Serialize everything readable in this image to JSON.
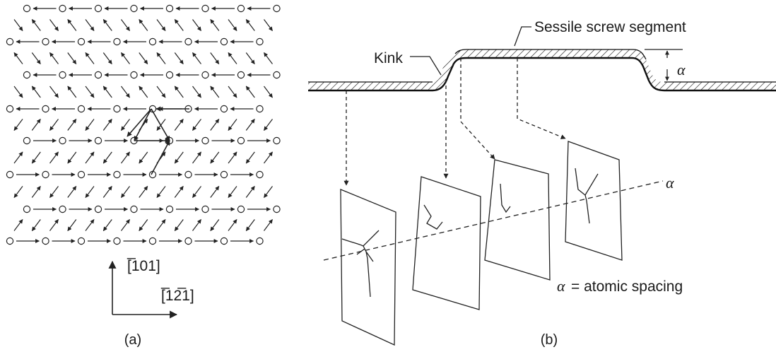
{
  "panel_a": {
    "caption": "(a)",
    "direction_vertical": "[̅101]",
    "direction_horizontal": "[̅12̅1]"
  },
  "panel_b": {
    "caption": "(b)",
    "label_kink": "Kink",
    "label_sessile": "Sessile screw segment",
    "label_alpha_step": "α",
    "label_alpha_line": "α",
    "label_alpha_def_symbol": "α",
    "label_alpha_def_text": "= atomic spacing"
  }
}
